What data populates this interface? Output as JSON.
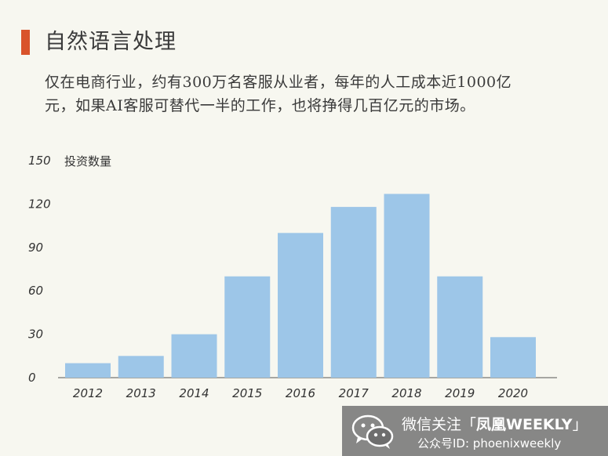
{
  "title": "自然语言处理",
  "body_lines": [
    "仅在电商行业，约有300万名客服从业者，每年的人工成本近1000亿",
    "元，如果AI客服可替代一半的工作，也将挣得几百亿元的市场。"
  ],
  "colors": {
    "accent": "#d9532b",
    "bar": "#9dc6e8",
    "axis": "#555555"
  },
  "chart_data": {
    "type": "bar",
    "title": "",
    "xlabel": "",
    "ylabel": "投资数量",
    "categories": [
      "2012",
      "2013",
      "2014",
      "2015",
      "2016",
      "2017",
      "2018",
      "2019",
      "2020"
    ],
    "values": [
      10,
      15,
      30,
      70,
      100,
      118,
      127,
      70,
      28
    ],
    "ylim": [
      0,
      150
    ],
    "yticks": [
      0,
      30,
      60,
      90,
      120,
      150
    ],
    "grid": false,
    "legend": "none"
  },
  "watermark": {
    "icon": "wechat-icon",
    "line1_prefix": "微信关注「",
    "line1_brand": "凤凰WEEKLY",
    "line1_suffix": "」",
    "line2": "公众号ID: phoenixweekly"
  }
}
